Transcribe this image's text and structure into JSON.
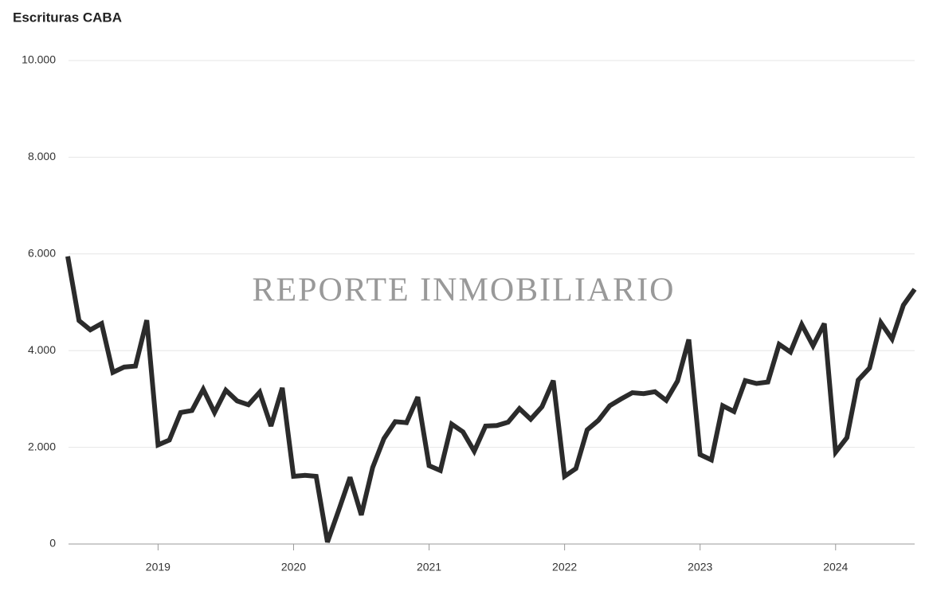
{
  "chart_data": {
    "type": "line",
    "title": "Escrituras CABA",
    "watermark": "REPORTE INMOBILIARIO",
    "categories": [
      null,
      null,
      null,
      null,
      null,
      null,
      null,
      null,
      "2019",
      null,
      null,
      null,
      null,
      null,
      null,
      null,
      null,
      null,
      null,
      null,
      "2020",
      null,
      null,
      null,
      null,
      null,
      null,
      null,
      null,
      null,
      null,
      null,
      "2021",
      null,
      null,
      null,
      null,
      null,
      null,
      null,
      null,
      null,
      null,
      null,
      "2022",
      null,
      null,
      null,
      null,
      null,
      null,
      null,
      null,
      null,
      null,
      null,
      "2023",
      null,
      null,
      null,
      null,
      null,
      null,
      null,
      null,
      null,
      null,
      null,
      "2024",
      null,
      null,
      null,
      null,
      null,
      null,
      null
    ],
    "values": [
      5950,
      4620,
      4430,
      4560,
      3550,
      3660,
      3680,
      4630,
      2050,
      2150,
      2720,
      2760,
      3200,
      2720,
      3180,
      2960,
      2880,
      3140,
      2440,
      3230,
      1400,
      1420,
      1400,
      40,
      700,
      1380,
      600,
      1580,
      2180,
      2530,
      2510,
      3040,
      1620,
      1520,
      2480,
      2320,
      1920,
      2440,
      2450,
      2520,
      2800,
      2580,
      2840,
      3380,
      1400,
      1560,
      2360,
      2560,
      2860,
      3000,
      3130,
      3110,
      3150,
      2970,
      3370,
      4230,
      1850,
      1740,
      2860,
      2740,
      3380,
      3320,
      3350,
      4130,
      3970,
      4540,
      4100,
      4560,
      1900,
      2200,
      3390,
      3640,
      4580,
      4240,
      4940,
      5270
    ],
    "color": "#2b2b2b",
    "ylim": [
      0,
      10000
    ],
    "yticks": [
      0,
      {
        "value": 2000,
        "label": "2.000"
      },
      {
        "value": 4000,
        "label": "4.000"
      },
      {
        "value": 6000,
        "label": "6.000"
      },
      {
        "value": 8000,
        "label": "8.000"
      },
      {
        "value": 10000,
        "label": "10.000"
      }
    ],
    "grid": true
  }
}
